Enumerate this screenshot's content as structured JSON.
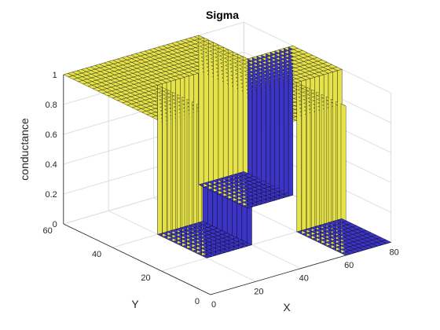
{
  "chart_data": {
    "type": "surface",
    "title": "Sigma",
    "xlabel": "X",
    "ylabel": "Y",
    "zlabel": "conductance",
    "x_ticks": [
      "0",
      "20",
      "40",
      "60",
      "80"
    ],
    "y_ticks": [
      "0",
      "20",
      "40",
      "60"
    ],
    "z_ticks": [
      "0",
      "0.2",
      "0.4",
      "0.6",
      "0.8",
      "1"
    ],
    "xlim": [
      0,
      80
    ],
    "ylim": [
      0,
      60
    ],
    "zlim": [
      0,
      1
    ],
    "grid": true,
    "colormap": "parula",
    "colors": {
      "high": "#e5e24a",
      "low": "#3b34c4",
      "edge": "#000000"
    },
    "conductance_map": {
      "description_levels": [
        0,
        1
      ],
      "high_region": [
        {
          "x": [
            0,
            20
          ],
          "y": [
            0,
            60
          ]
        },
        {
          "x": [
            20,
            40
          ],
          "y": [
            0,
            20
          ]
        },
        {
          "x": [
            20,
            40
          ],
          "y": [
            40,
            60
          ]
        },
        {
          "x": [
            40,
            60
          ],
          "y": [
            0,
            60
          ]
        },
        {
          "x": [
            60,
            80
          ],
          "y": [
            20,
            40
          ]
        }
      ],
      "low_region": [
        {
          "x": [
            20,
            40
          ],
          "y": [
            20,
            40
          ]
        },
        {
          "x": [
            60,
            80
          ],
          "y": [
            0,
            20
          ]
        },
        {
          "x": [
            60,
            80
          ],
          "y": [
            40,
            60
          ]
        }
      ]
    }
  }
}
